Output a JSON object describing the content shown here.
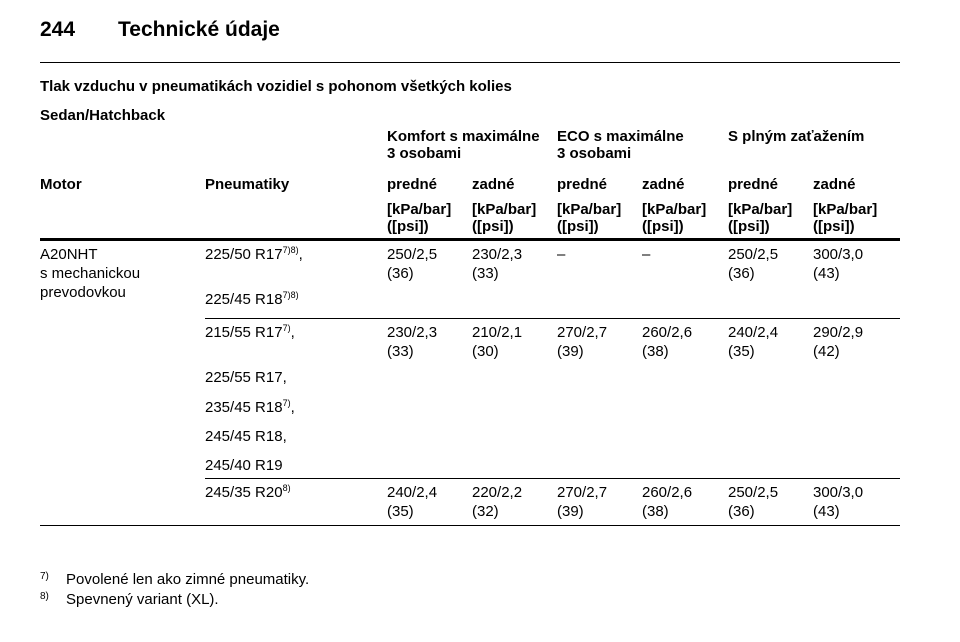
{
  "header": {
    "page": "244",
    "title": "Technické údaje"
  },
  "section_title": "Tlak vzduchu v pneumatikách vozidiel s pohonom všetkých kolies",
  "subtitle": "Sedan/Hatchback",
  "table": {
    "groups": [
      [
        "Komfort s maximálne",
        "3 osobami"
      ],
      [
        "ECO s maximálne",
        "3 osobami"
      ],
      [
        "S plným zaťažením"
      ]
    ],
    "columns": [
      "Motor",
      "Pneumatiky",
      "predné",
      "zadné",
      "predné",
      "zadné",
      "predné",
      "zadné"
    ],
    "units": [
      "[kPa/bar]",
      "([psi])"
    ],
    "motor": [
      "A20NHT",
      "s mechanickou",
      "prevodovkou"
    ],
    "rows": [
      {
        "tires": [
          {
            "name": "225/50 R17",
            "note": "7)8)",
            "sep": ","
          },
          {
            "name": "225/45 R18",
            "note": "7)8)"
          }
        ],
        "values": [
          [
            "250/2,5",
            "(36)"
          ],
          [
            "230/2,3",
            "(33)"
          ],
          [
            "–"
          ],
          [
            "–"
          ],
          [
            "250/2,5",
            "(36)"
          ],
          [
            "300/3,0",
            "(43)"
          ]
        ]
      },
      {
        "tires": [
          {
            "name": "215/55 R17",
            "note": "7)",
            "sep": ","
          },
          {
            "name": "225/55 R17,"
          },
          {
            "name": "235/45 R18",
            "note": "7)",
            "sep": ","
          },
          {
            "name": "245/45 R18,"
          },
          {
            "name": "245/40 R19"
          }
        ],
        "values": [
          [
            "230/2,3",
            "(33)"
          ],
          [
            "210/2,1",
            "(30)"
          ],
          [
            "270/2,7",
            "(39)"
          ],
          [
            "260/2,6",
            "(38)"
          ],
          [
            "240/2,4",
            "(35)"
          ],
          [
            "290/2,9",
            "(42)"
          ]
        ]
      },
      {
        "tires": [
          {
            "name": "245/35 R20",
            "note": "8)"
          }
        ],
        "values": [
          [
            "240/2,4",
            "(35)"
          ],
          [
            "220/2,2",
            "(32)"
          ],
          [
            "270/2,7",
            "(39)"
          ],
          [
            "260/2,6",
            "(38)"
          ],
          [
            "250/2,5",
            "(36)"
          ],
          [
            "300/3,0",
            "(43)"
          ]
        ]
      }
    ]
  },
  "footnotes": [
    {
      "mark": "7)",
      "text": "Povolené len ako zimné pneumatiky."
    },
    {
      "mark": "8)",
      "text": "Spevnený variant (XL)."
    }
  ]
}
